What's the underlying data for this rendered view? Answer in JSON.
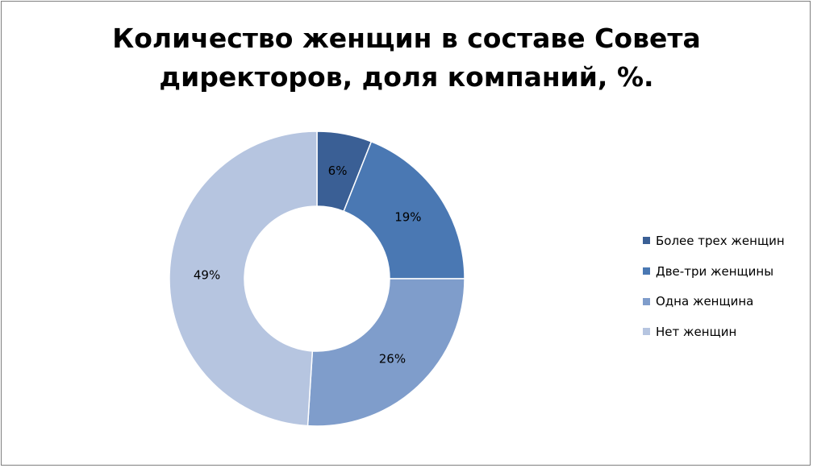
{
  "chart_data": {
    "type": "donut",
    "title_lines": [
      "Количество женщин в составе Совета",
      "директоров, доля компаний, %."
    ],
    "categories": [
      "Более трех женщин",
      "Две-три женщины",
      "Одна женщина",
      "Нет женщин"
    ],
    "values": [
      6,
      19,
      26,
      49
    ],
    "data_labels": [
      "6%",
      "19%",
      "26%",
      "49%"
    ],
    "colors": [
      "#3a5f95",
      "#4a78b3",
      "#7f9dcb",
      "#b6c5e0"
    ],
    "legend_position": "right"
  }
}
